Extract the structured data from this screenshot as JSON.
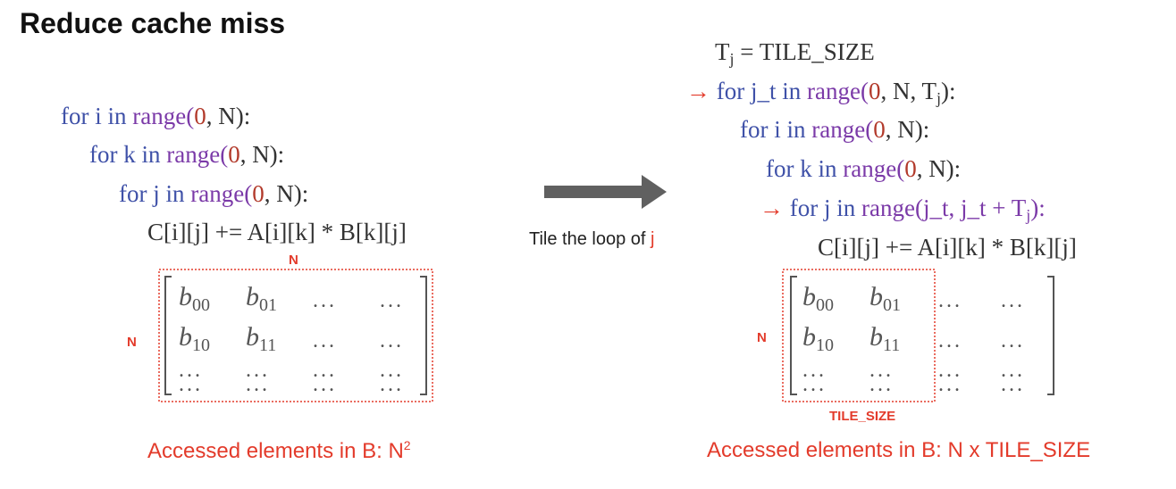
{
  "title": "Reduce cache miss",
  "left_code": {
    "line1": {
      "for": "for i in ",
      "range": "range(",
      "zero": "0",
      "rest": ", N):"
    },
    "line2": {
      "for": "for k in ",
      "range": "range(",
      "zero": "0",
      "rest": ", N):"
    },
    "line3": {
      "for": "for j in ",
      "range": "range(",
      "zero": "0",
      "rest": ", N):"
    },
    "line4": "C[i][j] += A[i][k] * B[k][j]"
  },
  "right_code": {
    "line0": "Tj = TILE_SIZE",
    "line1": {
      "for": "for j_t in ",
      "range": "range(",
      "zero": "0",
      "rest": ", N, Tj):"
    },
    "line2": {
      "for": "for i in ",
      "range": "range(",
      "zero": "0",
      "rest": ", N):"
    },
    "line3": {
      "for": "for k in ",
      "range": "range(",
      "zero": "0",
      "rest": ", N):"
    },
    "line4": {
      "for": "for j in ",
      "range": "range(j_t, j_t + Tj):"
    },
    "line5": "C[i][j] += A[i][k] * B[k][j]"
  },
  "middle": {
    "label": "Tile the loop of ",
    "var": "j"
  },
  "labels": {
    "n_top": "N",
    "n_left": "N",
    "n_right": "N",
    "tile_size": "TILE_SIZE"
  },
  "matrix": {
    "b00": {
      "base": "b",
      "sub": "00"
    },
    "b01": {
      "base": "b",
      "sub": "01"
    },
    "b10": {
      "base": "b",
      "sub": "10"
    },
    "b11": {
      "base": "b",
      "sub": "11"
    },
    "hdots": "...",
    "vdots": "⋮"
  },
  "captions": {
    "left_prefix": "Accessed elements in B: N",
    "left_exp": "2",
    "right": "Accessed elements in B: N x TILE_SIZE"
  },
  "colors": {
    "keyword": "#3f51a8",
    "range": "#7b3aa8",
    "number": "#b23a2b",
    "highlight": "#e33b2b",
    "arrow": "#606060"
  }
}
